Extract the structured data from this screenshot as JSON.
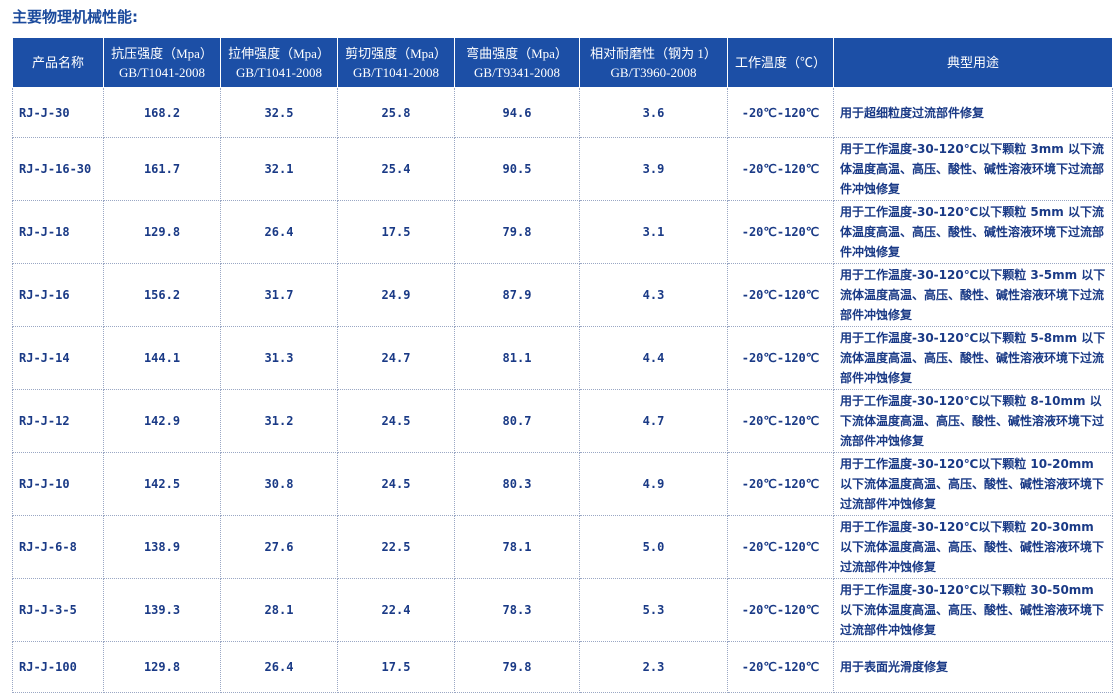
{
  "title": "主要物理机械性能:",
  "table": {
    "header": [
      [
        "产品名称"
      ],
      [
        "抗压强度（Mpa）",
        "GB/T1041-2008"
      ],
      [
        "拉伸强度（Mpa）",
        "GB/T1041-2008"
      ],
      [
        "剪切强度（Mpa）",
        "GB/T1041-2008"
      ],
      [
        "弯曲强度（Mpa）",
        "GB/T9341-2008"
      ],
      [
        "相对耐磨性（钢为 1）",
        "GB/T3960-2008"
      ],
      [
        "工作温度（℃）"
      ],
      [
        "典型用途"
      ]
    ],
    "rows": [
      [
        "RJ-J-30",
        "168.2",
        "32.5",
        "25.8",
        "94.6",
        "3.6",
        "-20℃-120℃",
        "用于超细粒度过流部件修复"
      ],
      [
        "RJ-J-16-30",
        "161.7",
        "32.1",
        "25.4",
        "90.5",
        "3.9",
        "-20℃-120℃",
        "用于工作温度-30-120℃以下颗粒 3mm 以下流体温度高温、高压、酸性、碱性溶液环境下过流部件冲蚀修复"
      ],
      [
        "RJ-J-18",
        "129.8",
        "26.4",
        "17.5",
        "79.8",
        "3.1",
        "-20℃-120℃",
        "用于工作温度-30-120℃以下颗粒 5mm 以下流体温度高温、高压、酸性、碱性溶液环境下过流部件冲蚀修复"
      ],
      [
        "RJ-J-16",
        "156.2",
        "31.7",
        "24.9",
        "87.9",
        "4.3",
        "-20℃-120℃",
        "用于工作温度-30-120℃以下颗粒 3-5mm 以下流体温度高温、高压、酸性、碱性溶液环境下过流部件冲蚀修复"
      ],
      [
        "RJ-J-14",
        "144.1",
        "31.3",
        "24.7",
        "81.1",
        "4.4",
        "-20℃-120℃",
        "用于工作温度-30-120℃以下颗粒 5-8mm 以下流体温度高温、高压、酸性、碱性溶液环境下过流部件冲蚀修复"
      ],
      [
        "RJ-J-12",
        "142.9",
        "31.2",
        "24.5",
        "80.7",
        "4.7",
        "-20℃-120℃",
        "用于工作温度-30-120℃以下颗粒 8-10mm 以下流体温度高温、高压、酸性、碱性溶液环境下过流部件冲蚀修复"
      ],
      [
        "RJ-J-10",
        "142.5",
        "30.8",
        "24.5",
        "80.3",
        "4.9",
        "-20℃-120℃",
        "用于工作温度-30-120℃以下颗粒 10-20mm 以下流体温度高温、高压、酸性、碱性溶液环境下过流部件冲蚀修复"
      ],
      [
        "RJ-J-6-8",
        "138.9",
        "27.6",
        "22.5",
        "78.1",
        "5.0",
        "-20℃-120℃",
        "用于工作温度-30-120℃以下颗粒 20-30mm 以下流体温度高温、高压、酸性、碱性溶液环境下过流部件冲蚀修复"
      ],
      [
        "RJ-J-3-5",
        "139.3",
        "28.1",
        "22.4",
        "78.3",
        "5.3",
        "-20℃-120℃",
        "用于工作温度-30-120℃以下颗粒 30-50mm 以下流体温度高温、高压、酸性、碱性溶液环境下过流部件冲蚀修复"
      ],
      [
        "RJ-J-100",
        "129.8",
        "26.4",
        "17.5",
        "79.8",
        "2.3",
        "-20℃-120℃",
        "用于表面光滑度修复"
      ]
    ]
  }
}
